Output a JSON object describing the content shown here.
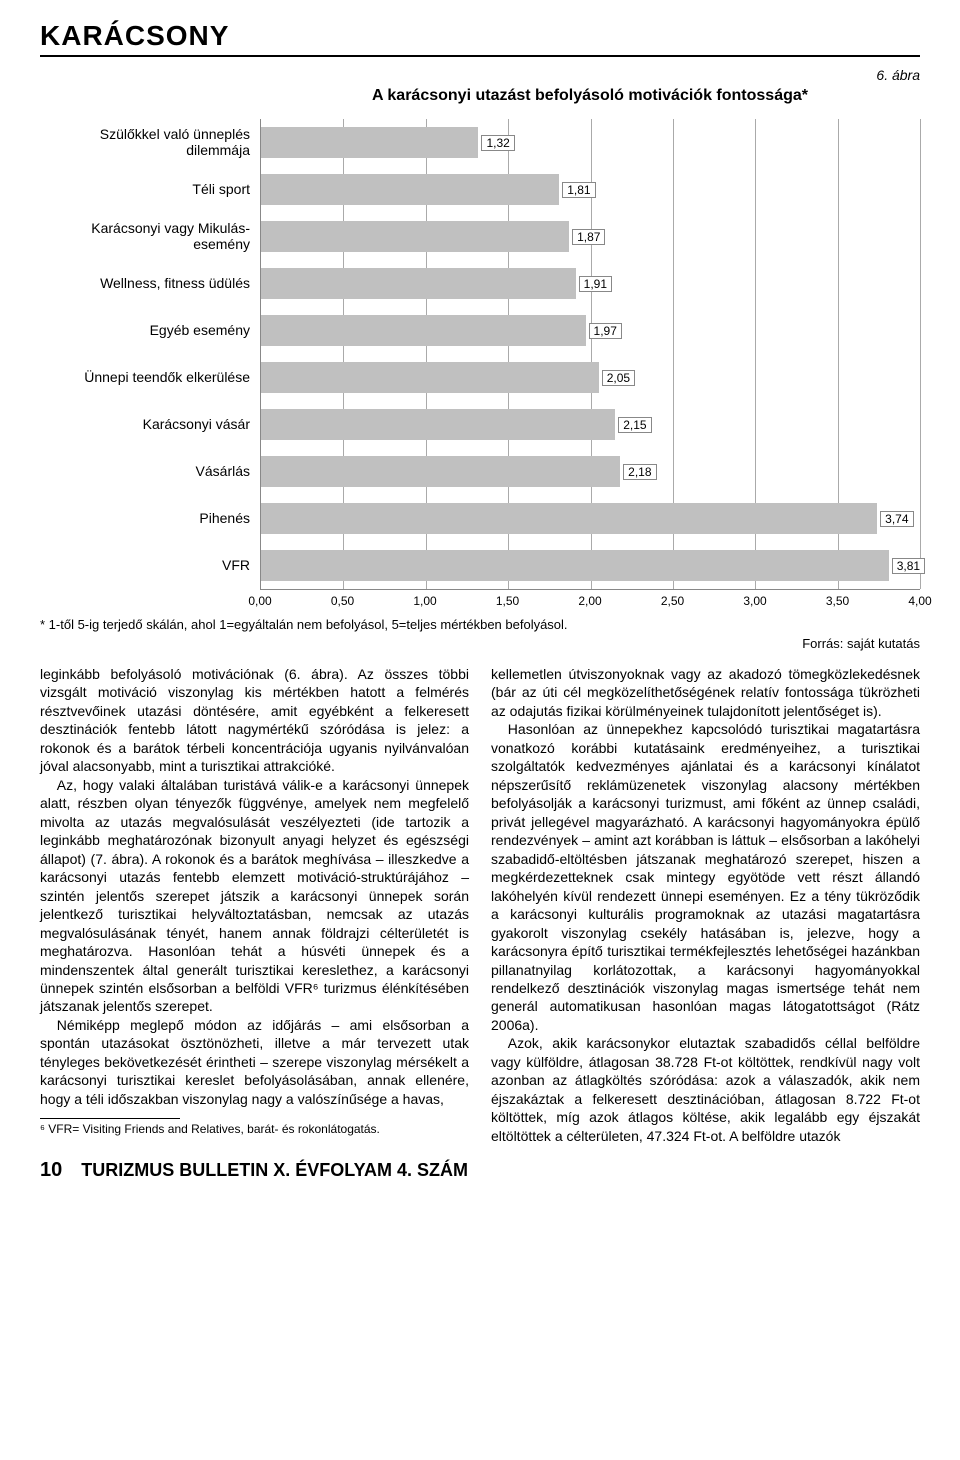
{
  "header": {
    "section_title": "KARÁCSONY"
  },
  "figure": {
    "number_label": "6. ábra",
    "title": "A karácsonyi utazást befolyásoló motivációk fontossága*",
    "note": "* 1-től 5-ig terjedő skálán, ahol 1=egyáltalán nem befolyásol, 5=teljes mértékben befolyásol.",
    "source": "Forrás: saját kutatás"
  },
  "chart": {
    "type": "bar-horizontal",
    "xlim": [
      0,
      4.0
    ],
    "xtick_step": 0.5,
    "xticks": [
      "0,00",
      "0,50",
      "1,00",
      "1,50",
      "2,00",
      "2,50",
      "3,00",
      "3,50",
      "4,00"
    ],
    "bar_color": "#c0c0c0",
    "grid_color": "#aaaaaa",
    "background_color": "#ffffff",
    "label_fontsize": 14,
    "value_fontsize": 12,
    "bars": [
      {
        "label": "Szülőkkel való ünneplés dilemmája",
        "value": 1.32,
        "display": "1,32"
      },
      {
        "label": "Téli sport",
        "value": 1.81,
        "display": "1,81"
      },
      {
        "label": "Karácsonyi vagy Mikulás-esemény",
        "value": 1.87,
        "display": "1,87"
      },
      {
        "label": "Wellness, fitness üdülés",
        "value": 1.91,
        "display": "1,91"
      },
      {
        "label": "Egyéb esemény",
        "value": 1.97,
        "display": "1,97"
      },
      {
        "label": "Ünnepi teendők elkerülése",
        "value": 2.05,
        "display": "2,05"
      },
      {
        "label": "Karácsonyi vásár",
        "value": 2.15,
        "display": "2,15"
      },
      {
        "label": "Vásárlás",
        "value": 2.18,
        "display": "2,18"
      },
      {
        "label": "Pihenés",
        "value": 3.74,
        "display": "3,74"
      },
      {
        "label": "VFR",
        "value": 3.81,
        "display": "3,81"
      }
    ]
  },
  "text": {
    "col1_p1": "leginkább befolyásoló motivációnak (6. ábra). Az összes többi vizsgált motiváció viszonylag kis mértékben hatott a felmérés résztvevőinek utazási döntésére, amit egyébként a felkeresett desztinációk fentebb látott nagymértékű szóródása is jelez: a rokonok és a barátok térbeli koncentrációja ugyanis nyilvánvalóan jóval alacsonyabb, mint a turisztikai attrakcióké.",
    "col1_p2": "Az, hogy valaki általában turistává válik-e a karácsonyi ünnepek alatt, részben olyan tényezők függvénye, amelyek nem megfelelő mivolta az utazás megvalósulását veszélyezteti (ide tartozik a leginkább meghatározónak bizonyult anyagi helyzet és egészségi állapot) (7. ábra). A rokonok és a barátok meghívása – illeszkedve a karácsonyi utazás fentebb elemzett motiváció-struktúrájához – szintén jelentős szerepet játszik a karácsonyi ünnepek során jelentkező turisztikai helyváltoztatásban, nemcsak az utazás megvalósulásának tényét, hanem annak földrajzi célterületét is meghatározva. Hasonlóan tehát a húsvéti ünnepek és a mindenszentek által generált turisztikai kereslethez, a karácsonyi ünnepek szintén elsősorban a belföldi VFR⁶ turizmus élénkítésében játszanak jelentős szerepet.",
    "col1_p3": "Némiképp meglepő módon az időjárás – ami elsősorban a spontán utazásokat ösztönözheti, illetve a már tervezett utak tényleges bekövetkezését érintheti – szerepe viszonylag mérsékelt a karácsonyi turisztikai kereslet befolyásolásában, annak ellenére, hogy a téli időszakban viszonylag nagy a valószínűsége a havas,",
    "footnote": "⁶ VFR= Visiting Friends and Relatives, barát- és rokonlátogatás.",
    "col2_p1": "kellemetlen útviszonyoknak vagy az akadozó tömegközlekedésnek (bár az úti cél megközelíthetőségének relatív fontossága tükrözheti az odajutás fizikai körülményeinek tulajdonított jelentőséget is).",
    "col2_p2": "Hasonlóan az ünnepekhez kapcsolódó turisztikai magatartásra vonatkozó korábbi kutatásaink eredményeihez, a turisztikai szolgáltatók kedvezményes ajánlatai és a karácsonyi kínálatot népszerűsítő reklámüzenetek viszonylag alacsony mértékben befolyásolják a karácsonyi turizmust, ami főként az ünnep családi, privát jellegével magyarázható. A karácsonyi hagyományokra épülő rendezvények – amint azt korábban is láttuk – elsősorban a lakóhelyi szabadidő-eltöltésben játszanak meghatározó szerepet, hiszen a megkérdezetteknek csak mintegy egyötöde vett részt állandó lakóhelyén kívül rendezett ünnepi eseményen. Ez a tény tükröződik a karácsonyi kulturális programoknak az utazási magatartásra gyakorolt viszonylag csekély hatásában is, jelezve, hogy a karácsonyra építő turisztikai termékfejlesztés lehetőségei hazánkban pillanatnyilag korlátozottak, a karácsonyi hagyományokkal rendelkező desztinációk viszonylag magas ismertsége tehát nem generál automatikusan hasonlóan magas látogatottságot (Rátz 2006a).",
    "col2_p3": "Azok, akik karácsonykor elutaztak szabadidős céllal belföldre vagy külföldre, átlagosan 38.728 Ft-ot költöttek, rendkívül nagy volt azonban az átlagköltés szóródása: azok a válaszadók, akik nem éjszakáztak a felkeresett desztinációban, átlagosan 8.722 Ft-ot költöttek, míg azok átlagos költése, akik legalább egy éjszakát eltöltöttek a célterületen, 47.324 Ft-ot. A belföldre utazók"
  },
  "footer": {
    "page_number": "10",
    "publication": "TURIZMUS BULLETIN X. ÉVFOLYAM 4. SZÁM"
  }
}
